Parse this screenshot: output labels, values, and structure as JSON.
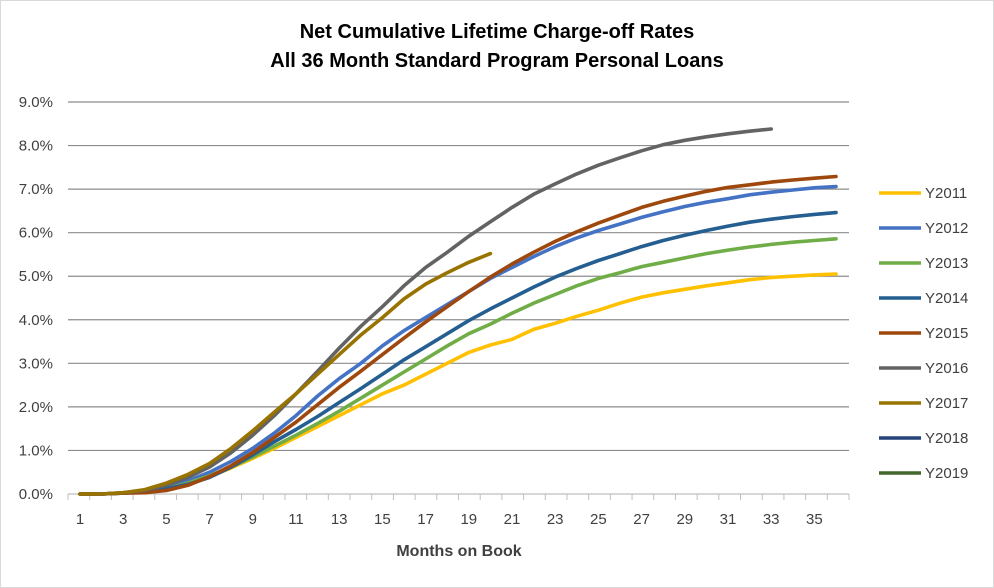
{
  "chart_data": {
    "type": "line",
    "title_line1": "Net Cumulative Lifetime Charge-off Rates",
    "title_line2": "All 36 Month Standard Program Personal Loans",
    "xlabel": "Months on Book",
    "ylabel": "",
    "xlim": [
      1,
      36
    ],
    "ylim": [
      0,
      9
    ],
    "x_ticks": [
      "1",
      "3",
      "5",
      "7",
      "9",
      "11",
      "13",
      "15",
      "17",
      "19",
      "21",
      "23",
      "25",
      "27",
      "29",
      "31",
      "33",
      "35"
    ],
    "y_ticks": [
      "0.0%",
      "1.0%",
      "2.0%",
      "3.0%",
      "4.0%",
      "5.0%",
      "6.0%",
      "7.0%",
      "8.0%",
      "9.0%"
    ],
    "grid": true,
    "legend_position": "right",
    "series": [
      {
        "name": "Y2011",
        "color": "#FFC000",
        "x": [
          1,
          2,
          3,
          4,
          5,
          6,
          7,
          8,
          9,
          10,
          11,
          12,
          13,
          14,
          15,
          16,
          17,
          18,
          19,
          20,
          21,
          22,
          23,
          24,
          25,
          26,
          27,
          28,
          29,
          30,
          31,
          32,
          33,
          34,
          35,
          36
        ],
        "values": [
          0,
          0,
          0.02,
          0.05,
          0.12,
          0.25,
          0.4,
          0.6,
          0.82,
          1.05,
          1.3,
          1.55,
          1.8,
          2.05,
          2.3,
          2.5,
          2.75,
          3.0,
          3.25,
          3.42,
          3.55,
          3.78,
          3.92,
          4.08,
          4.22,
          4.38,
          4.52,
          4.62,
          4.7,
          4.78,
          4.85,
          4.92,
          4.97,
          5.0,
          5.03,
          5.05
        ]
      },
      {
        "name": "Y2012",
        "color": "#4472C4",
        "x": [
          1,
          2,
          3,
          4,
          5,
          6,
          7,
          8,
          9,
          10,
          11,
          12,
          13,
          14,
          15,
          16,
          17,
          18,
          19,
          20,
          21,
          22,
          23,
          24,
          25,
          26,
          27,
          28,
          29,
          30,
          31,
          32,
          33,
          34,
          35,
          36
        ],
        "values": [
          0,
          0,
          0.02,
          0.05,
          0.15,
          0.3,
          0.5,
          0.75,
          1.05,
          1.4,
          1.8,
          2.25,
          2.65,
          3.0,
          3.4,
          3.75,
          4.05,
          4.35,
          4.65,
          4.95,
          5.2,
          5.45,
          5.68,
          5.88,
          6.05,
          6.2,
          6.35,
          6.48,
          6.6,
          6.7,
          6.78,
          6.87,
          6.93,
          6.98,
          7.03,
          7.06
        ]
      },
      {
        "name": "Y2013",
        "color": "#70AD47",
        "x": [
          1,
          2,
          3,
          4,
          5,
          6,
          7,
          8,
          9,
          10,
          11,
          12,
          13,
          14,
          15,
          16,
          17,
          18,
          19,
          20,
          21,
          22,
          23,
          24,
          25,
          26,
          27,
          28,
          29,
          30,
          31,
          32,
          33,
          34,
          35,
          36
        ],
        "values": [
          0,
          0,
          0.02,
          0.05,
          0.12,
          0.25,
          0.42,
          0.62,
          0.85,
          1.1,
          1.35,
          1.62,
          1.9,
          2.2,
          2.5,
          2.8,
          3.1,
          3.4,
          3.68,
          3.9,
          4.15,
          4.38,
          4.58,
          4.78,
          4.95,
          5.08,
          5.22,
          5.32,
          5.42,
          5.52,
          5.6,
          5.67,
          5.73,
          5.78,
          5.82,
          5.86
        ]
      },
      {
        "name": "Y2014",
        "color": "#255E91",
        "x": [
          1,
          2,
          3,
          4,
          5,
          6,
          7,
          8,
          9,
          10,
          11,
          12,
          13,
          14,
          15,
          16,
          17,
          18,
          19,
          20,
          21,
          22,
          23,
          24,
          25,
          26,
          27,
          28,
          29,
          30,
          31,
          32,
          33,
          34,
          35,
          36
        ],
        "values": [
          0,
          0,
          0.02,
          0.05,
          0.12,
          0.22,
          0.38,
          0.62,
          0.9,
          1.2,
          1.48,
          1.78,
          2.1,
          2.42,
          2.75,
          3.08,
          3.38,
          3.68,
          3.98,
          4.25,
          4.5,
          4.75,
          4.98,
          5.18,
          5.36,
          5.52,
          5.68,
          5.82,
          5.94,
          6.05,
          6.15,
          6.24,
          6.31,
          6.37,
          6.42,
          6.46
        ]
      },
      {
        "name": "Y2015",
        "color": "#9E480E",
        "x": [
          1,
          2,
          3,
          4,
          5,
          6,
          7,
          8,
          9,
          10,
          11,
          12,
          13,
          14,
          15,
          16,
          17,
          18,
          19,
          20,
          21,
          22,
          23,
          24,
          25,
          26,
          27,
          28,
          29,
          30,
          31,
          32,
          33,
          34,
          35,
          36
        ],
        "values": [
          0,
          0,
          0.02,
          0.03,
          0.08,
          0.2,
          0.4,
          0.65,
          0.95,
          1.3,
          1.65,
          2.05,
          2.45,
          2.82,
          3.2,
          3.58,
          3.95,
          4.3,
          4.65,
          4.98,
          5.28,
          5.55,
          5.8,
          6.02,
          6.22,
          6.4,
          6.58,
          6.72,
          6.84,
          6.95,
          7.04,
          7.1,
          7.16,
          7.21,
          7.25,
          7.29
        ]
      },
      {
        "name": "Y2016",
        "color": "#636363",
        "x": [
          1,
          2,
          3,
          4,
          5,
          6,
          7,
          8,
          9,
          10,
          11,
          12,
          13,
          14,
          15,
          16,
          17,
          18,
          19,
          20,
          21,
          22,
          23,
          24,
          25,
          26,
          27,
          28,
          29,
          30,
          31,
          32,
          33
        ],
        "values": [
          0,
          0,
          0.03,
          0.08,
          0.2,
          0.38,
          0.62,
          0.95,
          1.35,
          1.8,
          2.3,
          2.82,
          3.35,
          3.85,
          4.3,
          4.78,
          5.2,
          5.55,
          5.92,
          6.25,
          6.58,
          6.88,
          7.12,
          7.35,
          7.55,
          7.72,
          7.88,
          8.02,
          8.12,
          8.2,
          8.27,
          8.33,
          8.38
        ]
      },
      {
        "name": "Y2017",
        "color": "#997300",
        "x": [
          1,
          2,
          3,
          4,
          5,
          6,
          7,
          8,
          9,
          10,
          11,
          12,
          13,
          14,
          15,
          16,
          17,
          18,
          19,
          20
        ],
        "values": [
          0,
          0,
          0.03,
          0.1,
          0.25,
          0.45,
          0.7,
          1.05,
          1.45,
          1.88,
          2.3,
          2.75,
          3.2,
          3.65,
          4.05,
          4.48,
          4.82,
          5.08,
          5.32,
          5.52
        ]
      },
      {
        "name": "Y2018",
        "color": "#264478",
        "x": [],
        "values": []
      },
      {
        "name": "Y2019",
        "color": "#43682B",
        "x": [],
        "values": []
      }
    ]
  }
}
